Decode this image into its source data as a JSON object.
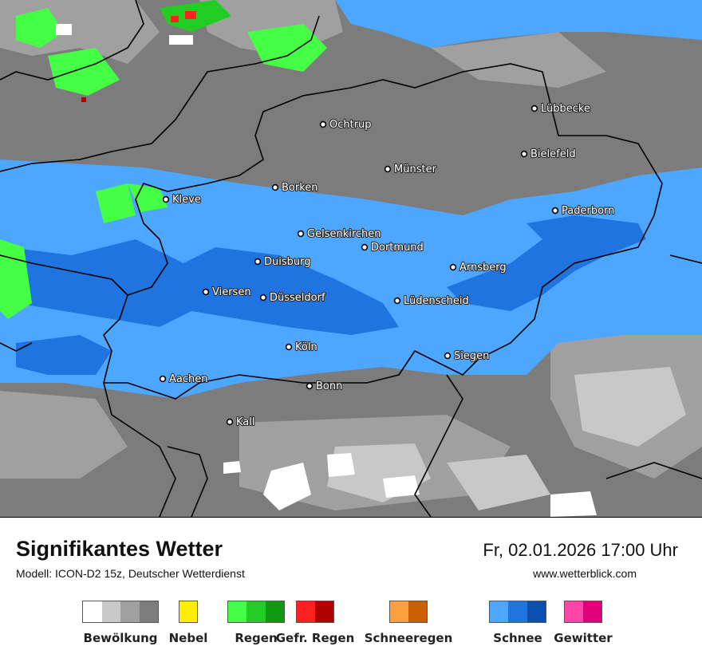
{
  "header": {
    "title": "Signifikantes Wetter",
    "model": "Modell: ICON-D2 15z, Deutscher Wetterdienst",
    "datetime": "Fr, 02.01.2026 17:00 Uhr",
    "website": "www.wetterblick.com"
  },
  "cities": [
    {
      "name": "Lübbecke"
    },
    {
      "name": "Ochtrup"
    },
    {
      "name": "Bielefeld"
    },
    {
      "name": "Münster"
    },
    {
      "name": "Borken"
    },
    {
      "name": "Kleve"
    },
    {
      "name": "Paderborn"
    },
    {
      "name": "Gelsenkirchen"
    },
    {
      "name": "Dortmund"
    },
    {
      "name": "Duisburg"
    },
    {
      "name": "Arnsberg"
    },
    {
      "name": "Viersen"
    },
    {
      "name": "Düsseldorf"
    },
    {
      "name": "Lüdenscheid"
    },
    {
      "name": "Köln"
    },
    {
      "name": "Siegen"
    },
    {
      "name": "Aachen"
    },
    {
      "name": "Bonn"
    },
    {
      "name": "Kall"
    }
  ],
  "legend": [
    {
      "label": "Bewölkung",
      "colors": [
        "#ffffff",
        "#c8c8c8",
        "#a0a0a0",
        "#7c7c7c"
      ]
    },
    {
      "label": "Nebel",
      "colors": [
        "#ffee00"
      ]
    },
    {
      "label": "Regen",
      "colors": [
        "#44ff44",
        "#22cc22",
        "#119911"
      ]
    },
    {
      "label": "Gefr. Regen",
      "colors": [
        "#ff2020",
        "#b00000"
      ]
    },
    {
      "label": "Schneeregen",
      "colors": [
        "#ffa040",
        "#cc5f00"
      ]
    },
    {
      "label": "Schnee",
      "colors": [
        "#4da6ff",
        "#1f74e0",
        "#0a50b0"
      ]
    },
    {
      "label": "Gewitter",
      "colors": [
        "#ff44aa",
        "#e0007a"
      ]
    }
  ]
}
